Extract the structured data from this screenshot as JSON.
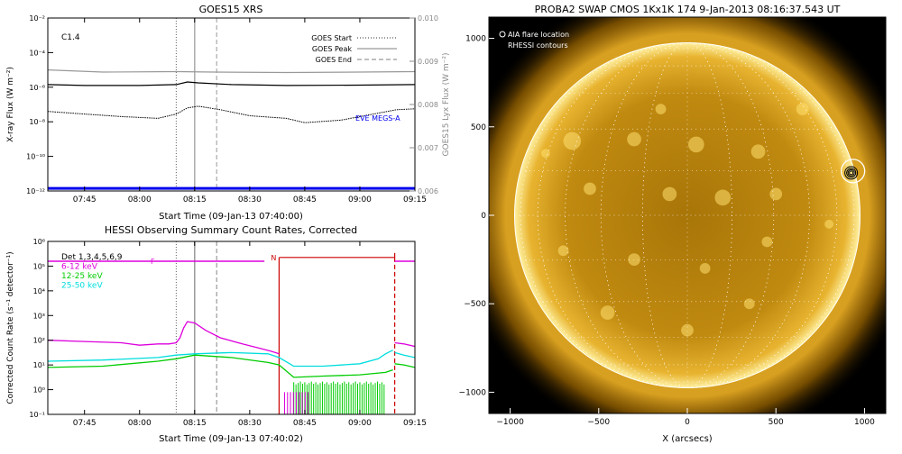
{
  "chart_data": [
    {
      "type": "line",
      "title": "GOES15 XRS",
      "xlabel": "Start Time (09-Jan-13 07:40:00)",
      "ylabel": "X-ray Flux (W m⁻²)",
      "ylabel_right": "GOES15 Lyx Flux (W m⁻²)",
      "ylim_exp": [
        -12,
        -2
      ],
      "y_tick_labels": [
        "10⁻¹²",
        "10⁻¹⁰",
        "10⁻⁸",
        "10⁻⁶",
        "10⁻⁴",
        "10⁻²"
      ],
      "y_tick_exps": [
        -12,
        -10,
        -8,
        -6,
        -4,
        -2
      ],
      "ylim_right": [
        0.006,
        0.01
      ],
      "y_right_ticks": [
        "0.006",
        "0.007",
        "0.008",
        "0.009",
        "0.010"
      ],
      "y_right_values": [
        0.006,
        0.007,
        0.008,
        0.009,
        0.01
      ],
      "xlim_min": [
        -5,
        95
      ],
      "x_tick_labels": [
        "07:45",
        "08:00",
        "08:15",
        "08:30",
        "08:45",
        "09:00",
        "09:15"
      ],
      "x_tick_min": [
        5,
        20,
        35,
        50,
        65,
        80,
        95
      ],
      "class_label": "C1.4",
      "flare_lines": [
        {
          "name": "GOES Start",
          "min": 30,
          "style": "dotted"
        },
        {
          "name": "GOES Peak",
          "min": 35,
          "style": "solid"
        },
        {
          "name": "GOES End",
          "min": 41,
          "style": "dashed"
        }
      ],
      "annotation": "EVE MEGS-A",
      "colors": {
        "long": "#000000",
        "lyx": "#999999",
        "short": "#000000",
        "eve": "#0000ee"
      },
      "series": [
        {
          "key": "long",
          "x_min": [
            -5,
            5,
            20,
            30,
            33,
            36,
            45,
            60,
            80,
            95
          ],
          "y_exp": [
            -5.85,
            -5.9,
            -5.9,
            -5.85,
            -5.7,
            -5.75,
            -5.85,
            -5.9,
            -5.88,
            -5.85
          ]
        },
        {
          "key": "lyx",
          "x_min": [
            -5,
            10,
            30,
            40,
            60,
            80,
            95
          ],
          "y_right": [
            0.0088,
            0.00875,
            0.00876,
            0.00875,
            0.00874,
            0.00875,
            0.00876
          ]
        },
        {
          "key": "short",
          "x_min": [
            -5,
            5,
            15,
            25,
            30,
            33,
            36,
            42,
            50,
            60,
            65,
            75,
            80,
            85,
            90,
            95
          ],
          "y_exp": [
            -7.4,
            -7.55,
            -7.7,
            -7.8,
            -7.55,
            -7.2,
            -7.1,
            -7.3,
            -7.65,
            -7.8,
            -8.05,
            -7.9,
            -7.7,
            -7.5,
            -7.3,
            -7.25
          ]
        },
        {
          "key": "eve",
          "x_min": [
            -5,
            95
          ],
          "y_exp": [
            -11.85,
            -11.85
          ]
        }
      ]
    },
    {
      "type": "line",
      "title": "HESSI Observing Summary Count Rates, Corrected",
      "xlabel": "Start Time (09-Jan-13 07:40:02)",
      "ylabel": "Corrected Count Rate (s⁻¹ detector⁻¹)",
      "ylim_exp": [
        -1,
        6
      ],
      "y_tick_labels": [
        "10⁻¹",
        "10⁰",
        "10¹",
        "10²",
        "10³",
        "10⁴",
        "10⁵",
        "10⁶"
      ],
      "y_tick_exps": [
        -1,
        0,
        1,
        2,
        3,
        4,
        5,
        6
      ],
      "xlim_min": [
        -5,
        95
      ],
      "x_tick_labels": [
        "07:45",
        "08:00",
        "08:15",
        "08:30",
        "08:45",
        "09:00",
        "09:15"
      ],
      "x_tick_min": [
        5,
        20,
        35,
        50,
        65,
        80,
        95
      ],
      "legend": [
        {
          "label": "Det 1,3,4,5,6,9",
          "color": "#000000"
        },
        {
          "label": "6-12 keV",
          "color": "#dd00dd"
        },
        {
          "label": "12-25 keV",
          "color": "#00cc00"
        },
        {
          "label": "25-50 keV",
          "color": "#00dddd"
        }
      ],
      "flags": [
        {
          "label": "F",
          "color": "#dd00dd"
        },
        {
          "label": "N",
          "color": "#cc0000"
        }
      ],
      "flare_lines": [
        {
          "min": 30,
          "style": "dotted",
          "color": "#777777"
        },
        {
          "min": 35,
          "style": "solid",
          "color": "#999999"
        },
        {
          "min": 41,
          "style": "dashed",
          "color": "#999999"
        }
      ],
      "night": {
        "start_min": 58,
        "end_min": 89.5
      },
      "series": [
        {
          "name": "6-12 keV",
          "color": "#dd00dd",
          "x_min": [
            -5,
            5,
            15,
            20,
            25,
            28,
            30,
            31,
            32,
            33,
            35,
            38,
            42,
            48,
            52,
            56,
            58
          ],
          "y_exp": [
            2.0,
            1.95,
            1.9,
            1.8,
            1.85,
            1.85,
            1.9,
            2.1,
            2.5,
            2.75,
            2.7,
            2.4,
            2.1,
            1.85,
            1.7,
            1.55,
            1.45
          ]
        },
        {
          "name": "12-25 keV",
          "color": "#00cc00",
          "x_min": [
            -5,
            10,
            25,
            30,
            35,
            45,
            55,
            58,
            62,
            70,
            80,
            87,
            89
          ],
          "y_exp": [
            0.9,
            0.95,
            1.15,
            1.25,
            1.4,
            1.3,
            1.1,
            1.0,
            0.5,
            0.55,
            0.6,
            0.7,
            0.8
          ]
        },
        {
          "name": "25-50 keV",
          "color": "#00dddd",
          "x_min": [
            -5,
            10,
            25,
            30,
            35,
            45,
            55,
            58,
            62,
            70,
            80,
            85,
            87,
            89
          ],
          "y_exp": [
            1.15,
            1.2,
            1.3,
            1.4,
            1.45,
            1.5,
            1.45,
            1.3,
            0.95,
            0.95,
            1.05,
            1.25,
            1.45,
            1.6
          ]
        },
        {
          "name": "6-12 keV after night",
          "color": "#dd00dd",
          "x_min": [
            89.5,
            92,
            95
          ],
          "y_exp": [
            1.9,
            1.85,
            1.75
          ]
        },
        {
          "name": "12-25 keV after night",
          "color": "#00cc00",
          "x_min": [
            89.5,
            92,
            95
          ],
          "y_exp": [
            1.05,
            1.0,
            0.9
          ]
        },
        {
          "name": "25-50 keV after night",
          "color": "#00dddd",
          "x_min": [
            89.5,
            92,
            95
          ],
          "y_exp": [
            1.5,
            1.4,
            1.3
          ]
        }
      ]
    },
    {
      "type": "heatmap",
      "title": "PROBA2 SWAP CMOS 1Kx1K 174  9-Jan-2013 08:16:37.543 UT",
      "xlabel": "X (arcsecs)",
      "xlim": [
        -1120,
        1120
      ],
      "ylim": [
        -1120,
        1120
      ],
      "x_ticks": [
        -1000,
        -500,
        0,
        500,
        1000
      ],
      "x_tick_labels": [
        "−1000",
        "−500",
        "0",
        "500",
        "1000"
      ],
      "y_ticks": [
        -1000,
        -500,
        0,
        500,
        1000
      ],
      "y_tick_labels": [
        "−1000",
        "−500",
        "0",
        "500",
        "1000"
      ],
      "legend": [
        {
          "label": "AIA flare location"
        },
        {
          "label": "RHESSI contours"
        }
      ],
      "solar_radius_arcsec": 975,
      "flare_location": [
        935,
        250
      ],
      "colors": {
        "disk": "#c08a10",
        "limb": "#fff0a0",
        "corona": "#8a5a00",
        "background": "#000000"
      }
    }
  ]
}
